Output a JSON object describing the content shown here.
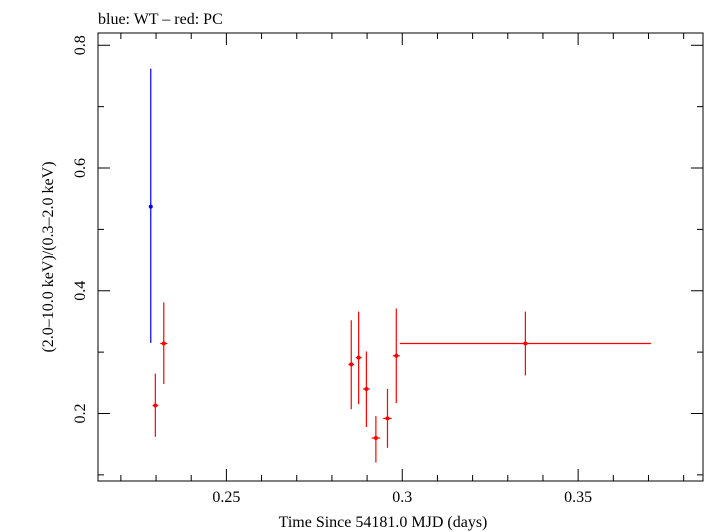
{
  "chart_data": {
    "type": "scatter",
    "title": "blue: WT – red: PC",
    "xlabel": "Time Since 54181.0 MJD (days)",
    "ylabel": "(2.0–10.0 keV)/(0.3–2.0 keV)",
    "xlim": [
      0.2135,
      0.3855
    ],
    "ylim": [
      0.09,
      0.82
    ],
    "x_ticks": [
      0.25,
      0.3,
      0.35
    ],
    "y_ticks": [
      0.2,
      0.4,
      0.6,
      0.8
    ],
    "grid": false,
    "series": [
      {
        "name": "WT",
        "color": "#0000ff",
        "points": [
          {
            "x": 0.2285,
            "xerr": 0.0003,
            "y": 0.537,
            "ylo": 0.315,
            "yhi": 0.762
          }
        ]
      },
      {
        "name": "PC",
        "color": "#ff0000",
        "points": [
          {
            "x": 0.2298,
            "xerr": 0.0008,
            "y": 0.213,
            "ylo": 0.162,
            "yhi": 0.265
          },
          {
            "x": 0.2322,
            "xerr": 0.001,
            "y": 0.314,
            "ylo": 0.248,
            "yhi": 0.381
          },
          {
            "x": 0.2855,
            "xerr": 0.0008,
            "y": 0.28,
            "ylo": 0.207,
            "yhi": 0.352
          },
          {
            "x": 0.2876,
            "xerr": 0.0008,
            "y": 0.291,
            "ylo": 0.215,
            "yhi": 0.366
          },
          {
            "x": 0.2898,
            "xerr": 0.001,
            "y": 0.24,
            "ylo": 0.178,
            "yhi": 0.301
          },
          {
            "x": 0.2925,
            "xerr": 0.0012,
            "y": 0.16,
            "ylo": 0.12,
            "yhi": 0.196
          },
          {
            "x": 0.2958,
            "xerr": 0.0012,
            "y": 0.192,
            "ylo": 0.144,
            "yhi": 0.24
          },
          {
            "x": 0.2983,
            "xerr": 0.001,
            "y": 0.294,
            "ylo": 0.217,
            "yhi": 0.371
          },
          {
            "x": 0.335,
            "xerr": 0.0357,
            "y": 0.314,
            "ylo": 0.262,
            "yhi": 0.366
          }
        ]
      }
    ]
  }
}
